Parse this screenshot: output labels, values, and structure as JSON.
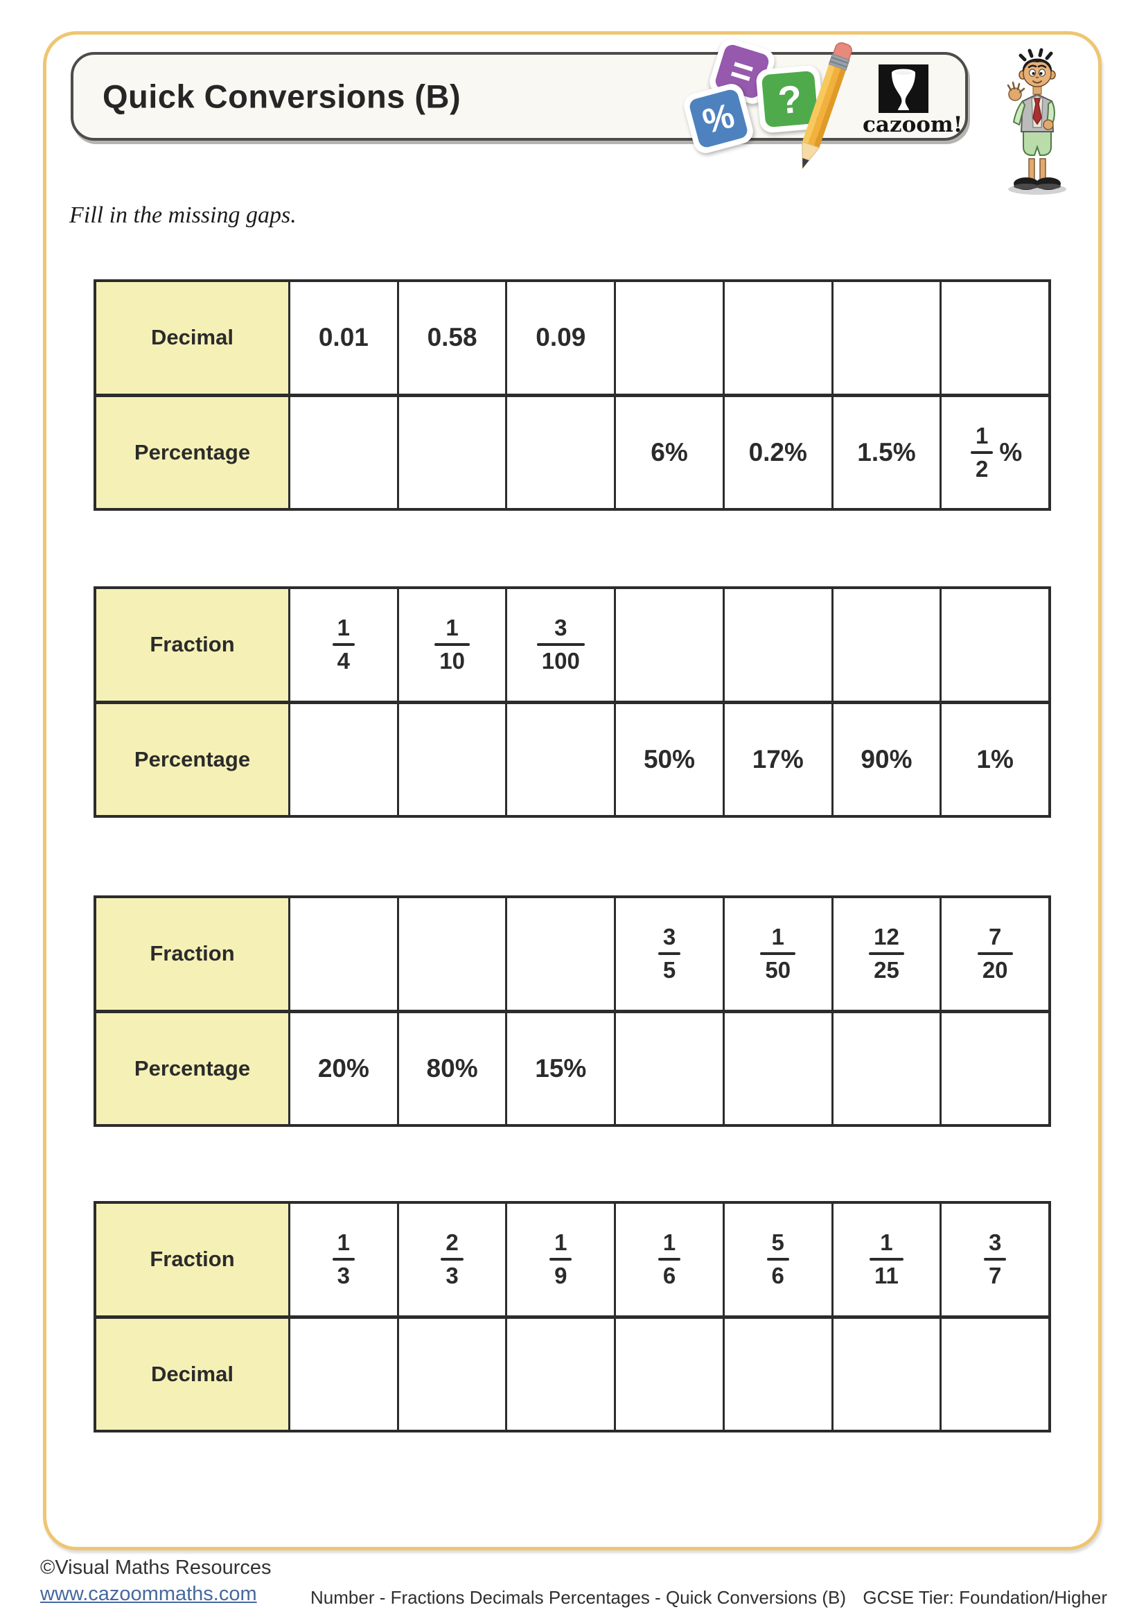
{
  "header": {
    "title": "Quick Conversions (B)",
    "logo_text": "cazoom!",
    "tiles": {
      "equals": "=",
      "question": "?",
      "percent": "%"
    }
  },
  "instruction": "Fill in the missing gaps.",
  "tables": [
    {
      "rows": [
        {
          "label": "Decimal",
          "cells": [
            {
              "text": "0.01"
            },
            {
              "text": "0.58"
            },
            {
              "text": "0.09"
            },
            {},
            {},
            {},
            {}
          ]
        },
        {
          "label": "Percentage",
          "cells": [
            {},
            {},
            {},
            {
              "text": "6%"
            },
            {
              "text": "0.2%"
            },
            {
              "text": "1.5%"
            },
            {
              "frac": [
                "1",
                "2"
              ],
              "suffix": "%"
            }
          ]
        }
      ]
    },
    {
      "rows": [
        {
          "label": "Fraction",
          "cells": [
            {
              "frac": [
                "1",
                "4"
              ]
            },
            {
              "frac": [
                "1",
                "10"
              ]
            },
            {
              "frac": [
                "3",
                "100"
              ]
            },
            {},
            {},
            {},
            {}
          ]
        },
        {
          "label": "Percentage",
          "cells": [
            {},
            {},
            {},
            {
              "text": "50%"
            },
            {
              "text": "17%"
            },
            {
              "text": "90%"
            },
            {
              "text": "1%"
            }
          ]
        }
      ]
    },
    {
      "rows": [
        {
          "label": "Fraction",
          "cells": [
            {},
            {},
            {},
            {
              "frac": [
                "3",
                "5"
              ]
            },
            {
              "frac": [
                "1",
                "50"
              ]
            },
            {
              "frac": [
                "12",
                "25"
              ]
            },
            {
              "frac": [
                "7",
                "20"
              ]
            }
          ]
        },
        {
          "label": "Percentage",
          "cells": [
            {
              "text": "20%"
            },
            {
              "text": "80%"
            },
            {
              "text": "15%"
            },
            {},
            {},
            {},
            {}
          ]
        }
      ]
    },
    {
      "rows": [
        {
          "label": "Fraction",
          "cells": [
            {
              "frac": [
                "1",
                "3"
              ]
            },
            {
              "frac": [
                "2",
                "3"
              ]
            },
            {
              "frac": [
                "1",
                "9"
              ]
            },
            {
              "frac": [
                "1",
                "6"
              ]
            },
            {
              "frac": [
                "5",
                "6"
              ]
            },
            {
              "frac": [
                "1",
                "11"
              ]
            },
            {
              "frac": [
                "3",
                "7"
              ]
            }
          ]
        },
        {
          "label": "Decimal",
          "cells": [
            {},
            {},
            {},
            {},
            {},
            {},
            {}
          ]
        }
      ]
    }
  ],
  "footer": {
    "copyright": "©Visual Maths Resources",
    "website": "www.cazoommaths.com",
    "center": "Number - Fractions Decimals Percentages - Quick Conversions (B)",
    "right": "GCSE Tier: Foundation/Higher"
  },
  "colors": {
    "frame": "#eec672",
    "label_cell": "#f5f1b6",
    "table_border": "#2c2c2c",
    "tile_purple": "#9659ad",
    "tile_green": "#4faa4c",
    "tile_blue": "#4d82bf",
    "link": "#46689d"
  }
}
